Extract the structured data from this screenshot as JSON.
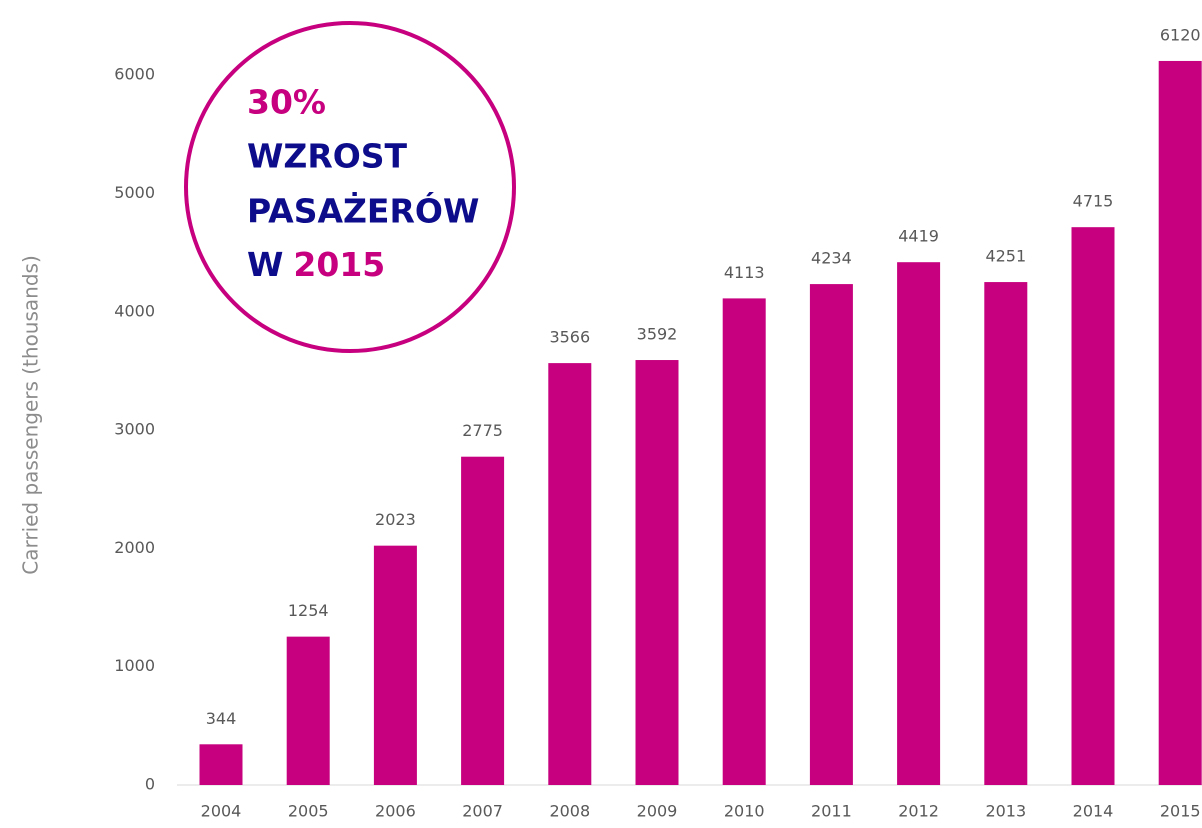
{
  "chart_data": {
    "type": "bar",
    "y_axis_label": "Carried passengers  (thousands)",
    "categories": [
      "2004",
      "2005",
      "2006",
      "2007",
      "2008",
      "2009",
      "2010",
      "2011",
      "2012",
      "2013",
      "2014",
      "2015"
    ],
    "values": [
      344,
      1254,
      2023,
      2775,
      3566,
      3592,
      4113,
      4234,
      4419,
      4251,
      4715,
      6120
    ],
    "color": "#c6007e",
    "ylim": [
      0,
      6500
    ],
    "yticks": [
      0,
      1000,
      2000,
      3000,
      4000,
      5000,
      6000
    ],
    "grid": false,
    "annotation": {
      "line1": "30%",
      "line2": "WZROST",
      "line3": "PASAŻERÓW",
      "line4a": "W",
      "line4b": "2015"
    }
  }
}
